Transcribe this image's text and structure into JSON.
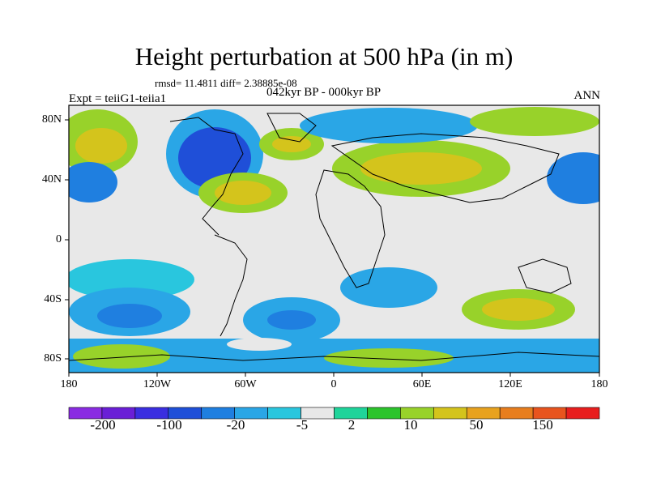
{
  "title": "Height perturbation at 500 hPa (in m)",
  "stats_text": "rmsd= 11.4811 diff= 2.38885e-08",
  "period": "042kyr BP - 000kyr BP",
  "experiment": "Expt = teiiG1-teiia1",
  "season": "ANN",
  "map": {
    "lat_ticks": [
      "80N",
      "40N",
      "0",
      "40S",
      "80S"
    ],
    "lon_ticks": [
      "180",
      "120W",
      "60W",
      "0",
      "60E",
      "120E",
      "180"
    ],
    "lat_range": [
      -90,
      90
    ],
    "lon_range": [
      -180,
      180
    ]
  },
  "colorbar": {
    "labels": [
      "-200",
      "-100",
      "-20",
      "-5",
      "2",
      "10",
      "50",
      "150"
    ],
    "colors": [
      "#8a2be2",
      "#6a1fd6",
      "#3a2ee0",
      "#1f4fd8",
      "#1f7fe0",
      "#2aa6e6",
      "#29c6de",
      "#e8e8e8",
      "#1fd49a",
      "#2cc42c",
      "#98d22a",
      "#d4c41c",
      "#e8a21e",
      "#e87e1e",
      "#e8541e",
      "#e81e1e"
    ]
  },
  "palette": {
    "blue_dark": "#1f4fd8",
    "blue": "#2aa6e6",
    "cyan": "#29c6de",
    "neutral": "#e8e8e8",
    "teal": "#1fd49a",
    "green": "#2cc42c",
    "yellow": "#d4c41c",
    "orange": "#e8a21e"
  }
}
